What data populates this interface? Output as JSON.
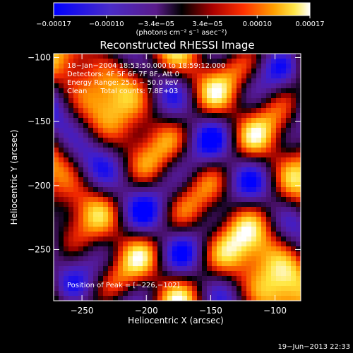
{
  "colorbar": {
    "tick_labels": [
      "−0.00017",
      "−0.00010",
      "−3.4e−05",
      "3.4e−05",
      "0.00010",
      "0.00017"
    ],
    "tick_values": [
      -0.00017,
      -0.0001,
      -3.4e-05,
      3.4e-05,
      0.0001,
      0.00017
    ],
    "range": [
      -0.00017,
      0.00017
    ],
    "units": "(photons cm⁻² s⁻¹ asec⁻²)"
  },
  "chart_data": {
    "type": "heatmap",
    "title": "Reconstructed RHESSI Image",
    "xlabel": "Heliocentric X (arcsec)",
    "ylabel": "Heliocentric Y (arcsec)",
    "xlim": [
      -272,
      -80
    ],
    "ylim": [
      -290,
      -97
    ],
    "xticks": [
      -250,
      -200,
      -150,
      -100
    ],
    "yticks": [
      -250,
      -200,
      -150,
      -100
    ],
    "xtick_labels": [
      "−250",
      "−200",
      "−150",
      "−100"
    ],
    "ytick_labels": [
      "−250",
      "−200",
      "−150",
      "−100"
    ],
    "colorscale": "blue-purple-black-red-yellow-white",
    "peak_position": [
      -226,
      -102
    ],
    "annotations": [
      "18−Jan−2004 18:53:50.000 to 18:59:12.000",
      "Detectors: 4F 5F 6F 7F 8F, Att 0",
      "Energy Range: 25.0 − 50.0 keV",
      "Clean      Total counts: 7.8E+03",
      "Position of Peak = [−226,−102]"
    ]
  },
  "footer": {
    "timestamp": "19−Jun−2013 22:33"
  }
}
